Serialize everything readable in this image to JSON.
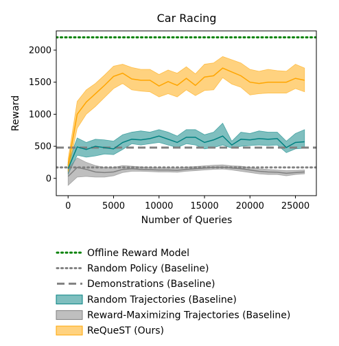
{
  "chart_data": {
    "type": "line",
    "title": "Car Racing",
    "xlabel": "Number of Queries",
    "ylabel": "Reward",
    "xlim": [
      -1300,
      27300
    ],
    "ylim": [
      -270,
      2300
    ],
    "xticks": [
      0,
      5000,
      10000,
      15000,
      20000,
      25000
    ],
    "yticks": [
      0,
      500,
      1000,
      1500,
      2000
    ],
    "grid": false,
    "legend_position": "below",
    "reference_lines": [
      {
        "name": "Offline Reward Model",
        "y": 2200,
        "color": "#008000",
        "style": "dotted"
      },
      {
        "name": "Random Policy (Baseline)",
        "y": 170,
        "color": "#808080",
        "style": "dotted"
      },
      {
        "name": "Demonstrations (Baseline)",
        "y": 480,
        "color": "#808080",
        "style": "dashed"
      }
    ],
    "series": [
      {
        "name": "Random Trajectories (Baseline)",
        "color": "#008080",
        "x": [
          0,
          1000,
          2000,
          3000,
          4000,
          5000,
          6000,
          7000,
          8000,
          9000,
          10000,
          11000,
          12000,
          13000,
          14000,
          15000,
          16000,
          17000,
          18000,
          19000,
          20000,
          21000,
          22000,
          23000,
          24000,
          25000,
          26000
        ],
        "y": [
          150,
          490,
          450,
          500,
          480,
          460,
          560,
          610,
          600,
          620,
          660,
          610,
          560,
          640,
          640,
          560,
          600,
          660,
          520,
          610,
          600,
          620,
          610,
          620,
          480,
          560,
          570
        ],
        "lower": [
          60,
          360,
          330,
          350,
          380,
          370,
          450,
          540,
          520,
          540,
          560,
          520,
          480,
          540,
          520,
          460,
          480,
          520,
          470,
          500,
          510,
          520,
          510,
          520,
          400,
          460,
          470
        ],
        "upper": [
          250,
          630,
          560,
          610,
          600,
          580,
          680,
          720,
          740,
          720,
          760,
          720,
          660,
          760,
          760,
          680,
          720,
          860,
          580,
          720,
          700,
          740,
          720,
          720,
          580,
          700,
          760
        ]
      },
      {
        "name": "Reward-Maximizing Trajectories (Baseline)",
        "color": "#808080",
        "x": [
          0,
          1000,
          2000,
          3000,
          4000,
          5000,
          6000,
          7000,
          8000,
          9000,
          10000,
          11000,
          12000,
          13000,
          14000,
          15000,
          16000,
          17000,
          18000,
          19000,
          20000,
          21000,
          22000,
          23000,
          24000,
          25000,
          26000
        ],
        "y": [
          30,
          170,
          140,
          100,
          90,
          100,
          140,
          150,
          140,
          135,
          130,
          130,
          125,
          140,
          150,
          160,
          170,
          175,
          160,
          150,
          130,
          110,
          100,
          95,
          80,
          90,
          100
        ],
        "lower": [
          -110,
          20,
          30,
          20,
          20,
          40,
          90,
          110,
          110,
          105,
          100,
          100,
          95,
          110,
          120,
          130,
          140,
          145,
          130,
          110,
          90,
          70,
          60,
          60,
          40,
          60,
          70
        ],
        "upper": [
          150,
          320,
          250,
          200,
          170,
          170,
          200,
          190,
          180,
          170,
          165,
          165,
          160,
          175,
          185,
          195,
          205,
          210,
          195,
          190,
          170,
          150,
          140,
          130,
          120,
          125,
          130
        ]
      },
      {
        "name": "ReQueST (Ours)",
        "color": "#FFA500",
        "x": [
          0,
          1000,
          2000,
          3000,
          4000,
          5000,
          6000,
          7000,
          8000,
          9000,
          10000,
          11000,
          12000,
          13000,
          14000,
          15000,
          16000,
          17000,
          18000,
          19000,
          20000,
          21000,
          22000,
          23000,
          24000,
          25000,
          26000
        ],
        "y": [
          200,
          1000,
          1190,
          1320,
          1450,
          1590,
          1640,
          1550,
          1530,
          1530,
          1440,
          1510,
          1450,
          1560,
          1450,
          1580,
          1600,
          1720,
          1660,
          1600,
          1500,
          1480,
          1500,
          1500,
          1500,
          1560,
          1530
        ],
        "lower": [
          100,
          780,
          1000,
          1120,
          1260,
          1400,
          1480,
          1380,
          1360,
          1350,
          1270,
          1320,
          1270,
          1380,
          1290,
          1370,
          1380,
          1570,
          1470,
          1420,
          1300,
          1320,
          1330,
          1330,
          1330,
          1400,
          1350
        ],
        "upper": [
          300,
          1200,
          1380,
          1480,
          1610,
          1750,
          1780,
          1730,
          1700,
          1700,
          1620,
          1690,
          1640,
          1740,
          1630,
          1780,
          1800,
          1900,
          1850,
          1800,
          1700,
          1670,
          1700,
          1680,
          1670,
          1780,
          1720
        ]
      }
    ]
  },
  "legend": {
    "items": [
      {
        "label": "Offline Reward Model",
        "kind": "dotted",
        "color": "#008000"
      },
      {
        "label": "Random Policy (Baseline)",
        "kind": "dotted",
        "color": "#808080"
      },
      {
        "label": "Demonstrations (Baseline)",
        "kind": "dashed",
        "color": "#808080"
      },
      {
        "label": "Random Trajectories (Baseline)",
        "kind": "patch",
        "color": "#008080"
      },
      {
        "label": "Reward-Maximizing Trajectories (Baseline)",
        "kind": "patch",
        "color": "#808080"
      },
      {
        "label": "ReQueST (Ours)",
        "kind": "patch",
        "color": "#FFA500"
      }
    ]
  }
}
